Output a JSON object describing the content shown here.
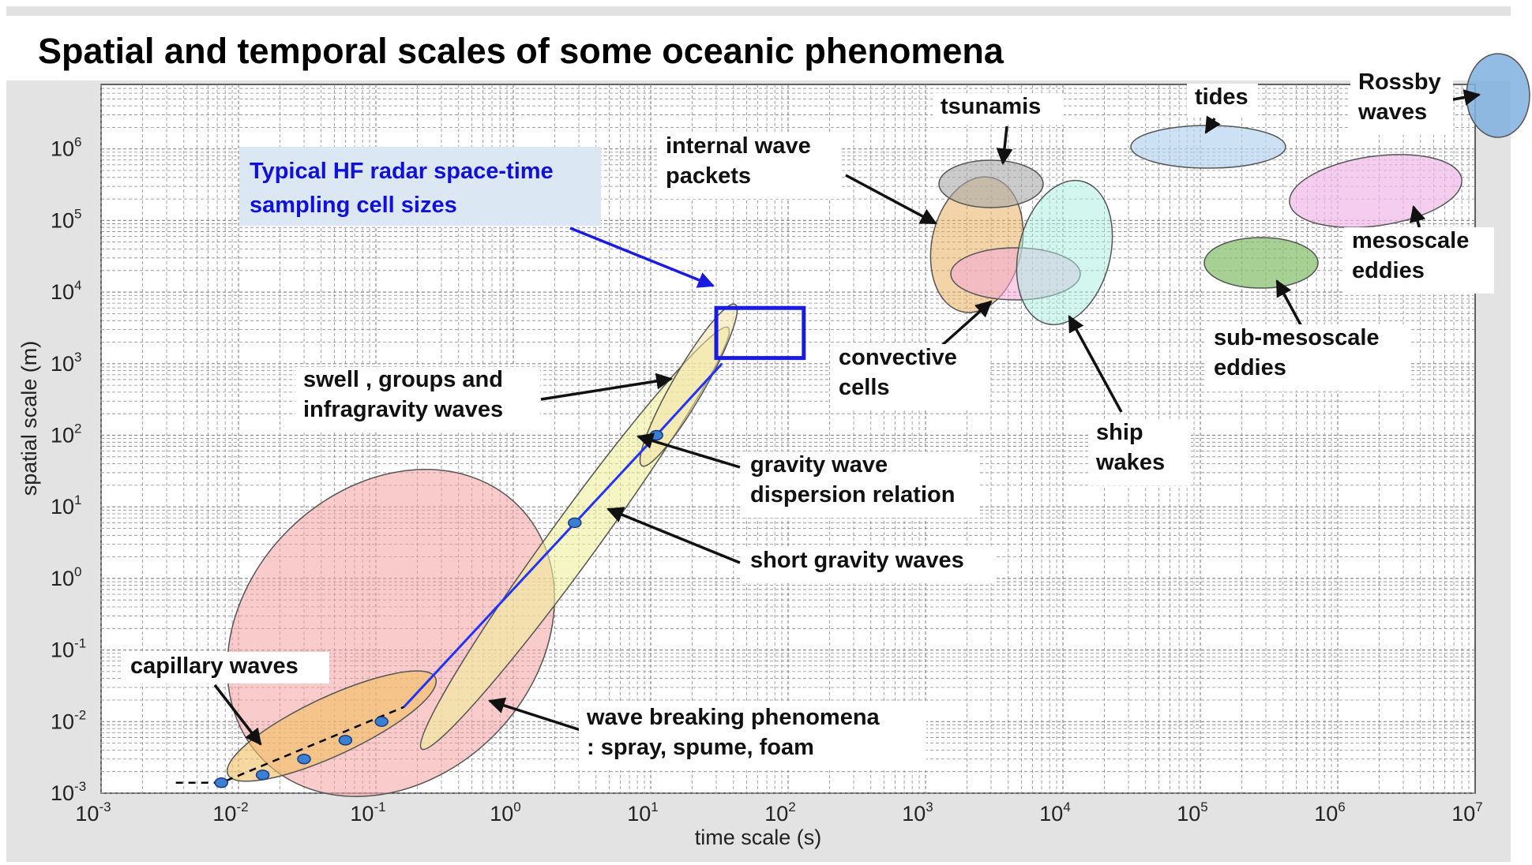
{
  "chart_data": {
    "type": "scatter",
    "title": "Spatial and temporal scales of some oceanic phenomena",
    "xlabel": "time scale (s)",
    "ylabel": "spatial scale (m)",
    "x_scale": "log",
    "y_scale": "log",
    "xlim": [
      0.001,
      10000000
    ],
    "ylim": [
      0.001,
      10000000
    ],
    "grid": true,
    "x_ticks": [
      {
        "base": "10",
        "exp": "-3",
        "value": 0.001
      },
      {
        "base": "10",
        "exp": "-2",
        "value": 0.01
      },
      {
        "base": "10",
        "exp": "-1",
        "value": 0.1
      },
      {
        "base": "10",
        "exp": "0",
        "value": 1
      },
      {
        "base": "10",
        "exp": "1",
        "value": 10
      },
      {
        "base": "10",
        "exp": "2",
        "value": 100
      },
      {
        "base": "10",
        "exp": "3",
        "value": 1000
      },
      {
        "base": "10",
        "exp": "4",
        "value": 10000
      },
      {
        "base": "10",
        "exp": "5",
        "value": 100000
      },
      {
        "base": "10",
        "exp": "6",
        "value": 1000000
      },
      {
        "base": "10",
        "exp": "7",
        "value": 10000000
      }
    ],
    "y_ticks": [
      {
        "base": "10",
        "exp": "-3",
        "value": 0.001
      },
      {
        "base": "10",
        "exp": "-2",
        "value": 0.01
      },
      {
        "base": "10",
        "exp": "-1",
        "value": 0.1
      },
      {
        "base": "10",
        "exp": "0",
        "value": 1
      },
      {
        "base": "10",
        "exp": "1",
        "value": 10
      },
      {
        "base": "10",
        "exp": "2",
        "value": 100
      },
      {
        "base": "10",
        "exp": "3",
        "value": 1000
      },
      {
        "base": "10",
        "exp": "4",
        "value": 10000
      },
      {
        "base": "10",
        "exp": "5",
        "value": 100000
      },
      {
        "base": "10",
        "exp": "6",
        "value": 1000000
      }
    ],
    "regions": [
      {
        "label": [
          "wave breaking phenomena",
          ": spray, spume, foam"
        ],
        "t_range": [
          0.01,
          2
        ],
        "l_range": [
          0.001,
          10
        ],
        "color": "#f4a0a0"
      },
      {
        "label": [
          "short gravity waves"
        ],
        "t_range": [
          0.25,
          12
        ],
        "l_range": [
          0.07,
          150
        ],
        "color": "#f0ee9c"
      },
      {
        "label": [
          "swell , groups and",
          "infragravity waves"
        ],
        "t_range": [
          10,
          50
        ],
        "l_range": [
          100,
          1500
        ],
        "color": "#f3e2a8"
      },
      {
        "label": [
          "capillary waves"
        ],
        "t_range": [
          0.007,
          0.3
        ],
        "l_range": [
          0.0007,
          0.02
        ],
        "color": "#f0c060"
      },
      {
        "label": [
          "internal wave",
          "packets"
        ],
        "t_range": [
          1000,
          8000
        ],
        "l_range": [
          5000,
          100000
        ],
        "color": "#e8b060"
      },
      {
        "label": [
          "tsunamis"
        ],
        "t_range": [
          1000,
          20000
        ],
        "l_range": [
          40000,
          300000
        ],
        "color": "#a8a8a8"
      },
      {
        "label": [
          "convective",
          "cells"
        ],
        "t_range": [
          1000,
          20000
        ],
        "l_range": [
          3000,
          12000
        ],
        "color": "#f4a8d8"
      },
      {
        "label": [
          "ship",
          "wakes"
        ],
        "t_range": [
          5000,
          50000
        ],
        "l_range": [
          1000,
          200000
        ],
        "color": "#a8f0e0"
      },
      {
        "label": [
          "tides"
        ],
        "t_range": [
          30000,
          500000
        ],
        "l_range": [
          300000,
          1000000
        ],
        "color": "#b8d4f0"
      },
      {
        "label": [
          "Rossby",
          "waves"
        ],
        "t_range": [
          3000000,
          20000000
        ],
        "l_range": [
          500000,
          5000000
        ],
        "color": "#80b0e0"
      },
      {
        "label": [
          "mesoscale",
          "eddies"
        ],
        "t_range": [
          500000,
          10000000
        ],
        "l_range": [
          30000,
          300000
        ],
        "color": "#f0b8e8"
      },
      {
        "label": [
          "sub-mesoscale",
          "eddies"
        ],
        "t_range": [
          50000,
          500000
        ],
        "l_range": [
          3000,
          20000
        ],
        "color": "#88c070"
      }
    ],
    "dispersion_relation": {
      "label": [
        "gravity wave",
        "dispersion relation"
      ],
      "color": "#2233ff",
      "points": [
        {
          "t": 0.0075,
          "l": 0.0014
        },
        {
          "t": 0.015,
          "l": 0.0018
        },
        {
          "t": 0.03,
          "l": 0.003
        },
        {
          "t": 0.06,
          "l": 0.0055
        },
        {
          "t": 0.11,
          "l": 0.01
        },
        {
          "t": 2.8,
          "l": 6
        },
        {
          "t": 11,
          "l": 100
        }
      ],
      "line": [
        {
          "t": 0.16,
          "l": 0.016
        },
        {
          "t": 11,
          "l": 100
        },
        {
          "t": 33,
          "l": 1000
        }
      ],
      "dashed_line": [
        {
          "t": 0.0035,
          "l": 0.0014
        },
        {
          "t": 0.0075,
          "l": 0.0014
        },
        {
          "t": 0.16,
          "l": 0.016
        }
      ]
    },
    "hf_radar_cell": {
      "label": [
        "Typical HF radar space-time",
        "sampling cell sizes"
      ],
      "t_range": [
        30,
        130
      ],
      "l_range": [
        1200,
        6000
      ],
      "color": "#1a1ae0",
      "label_bg": "#dbe7f3"
    }
  }
}
